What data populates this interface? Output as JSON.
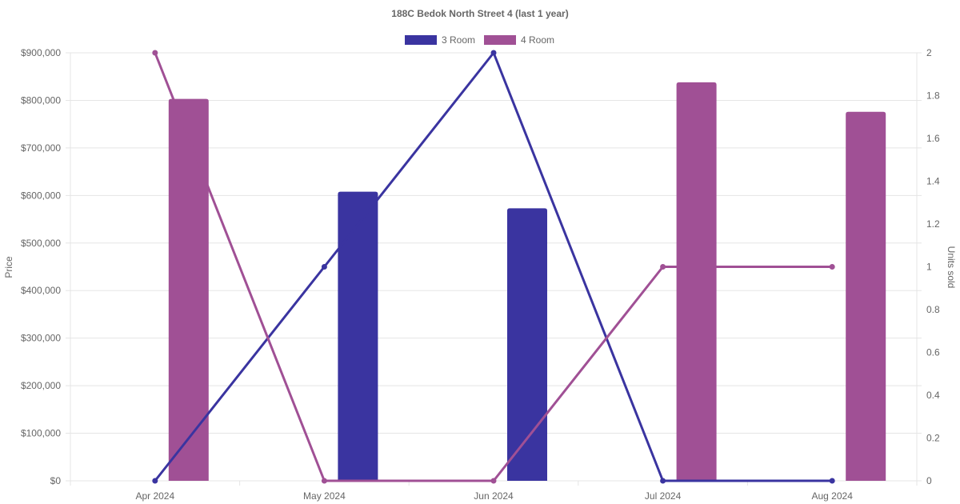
{
  "chart_data": {
    "type": "bar",
    "title": "188C Bedok North Street 4 (last 1 year)",
    "categories": [
      "Apr 2024",
      "May 2024",
      "Jun 2024",
      "Jul 2024",
      "Aug 2024"
    ],
    "left_axis": {
      "label": "Price",
      "ylim": [
        0,
        900000
      ],
      "ticks": [
        "$0",
        "$100,000",
        "$200,000",
        "$300,000",
        "$400,000",
        "$500,000",
        "$600,000",
        "$700,000",
        "$800,000",
        "$900,000"
      ]
    },
    "right_axis": {
      "label": "Units sold",
      "ylim": [
        0,
        2
      ],
      "ticks": [
        "0",
        "0.2",
        "0.4",
        "0.6",
        "0.8",
        "1",
        "1.2",
        "1.4",
        "1.6",
        "1.8",
        "2"
      ]
    },
    "grid": true,
    "legend_position": "top-center",
    "series": [
      {
        "name": "3 Room",
        "color": "#3a34a0",
        "price_values": [
          null,
          608000,
          573000,
          null,
          null
        ],
        "units_sold": [
          0,
          1,
          2,
          0,
          0
        ]
      },
      {
        "name": "4 Room",
        "color": "#a05095",
        "price_values": [
          803000,
          null,
          null,
          838000,
          776000
        ],
        "units_sold": [
          2,
          0,
          0,
          1,
          1
        ]
      }
    ]
  }
}
